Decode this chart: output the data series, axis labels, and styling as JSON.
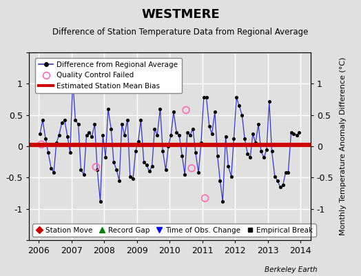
{
  "title": "WESTMERE",
  "subtitle": "Difference of Station Temperature Data from Regional Average",
  "ylabel": "Monthly Temperature Anomaly Difference (°C)",
  "xlim": [
    2005.7,
    2014.3
  ],
  "ylim": [
    -1.5,
    1.5
  ],
  "yticks": [
    -1.5,
    -1.0,
    -0.5,
    0.0,
    0.5,
    1.0,
    1.5
  ],
  "right_yticks": [
    -1.0,
    -0.5,
    0.0,
    0.5,
    1.0
  ],
  "right_yticklabels": [
    "-1",
    "-0.5",
    "0",
    "0.5",
    "1"
  ],
  "xticks": [
    2006,
    2007,
    2008,
    2009,
    2010,
    2011,
    2012,
    2013,
    2014
  ],
  "bias_start": 2005.7,
  "bias_end": 2014.3,
  "bias_value": 0.02,
  "background_color": "#e0e0e0",
  "grid_color": "#ffffff",
  "line_color": "#3333cc",
  "bias_color": "#cc0000",
  "watermark": "Berkeley Earth",
  "qc_failed": [
    [
      2006.08,
      0.03
    ],
    [
      2007.75,
      -0.33
    ],
    [
      2010.5,
      0.58
    ],
    [
      2010.67,
      -0.35
    ],
    [
      2011.08,
      -0.83
    ]
  ],
  "monthly_data": [
    [
      2006.04,
      0.2
    ],
    [
      2006.12,
      0.42
    ],
    [
      2006.21,
      0.12
    ],
    [
      2006.29,
      -0.1
    ],
    [
      2006.38,
      -0.35
    ],
    [
      2006.46,
      -0.42
    ],
    [
      2006.54,
      0.05
    ],
    [
      2006.62,
      0.18
    ],
    [
      2006.71,
      0.38
    ],
    [
      2006.79,
      0.42
    ],
    [
      2006.88,
      0.15
    ],
    [
      2006.96,
      -0.1
    ],
    [
      2007.04,
      1.05
    ],
    [
      2007.12,
      0.42
    ],
    [
      2007.21,
      0.35
    ],
    [
      2007.29,
      -0.38
    ],
    [
      2007.38,
      -0.45
    ],
    [
      2007.46,
      0.18
    ],
    [
      2007.54,
      0.22
    ],
    [
      2007.62,
      0.15
    ],
    [
      2007.71,
      0.35
    ],
    [
      2007.79,
      -0.38
    ],
    [
      2007.88,
      -0.88
    ],
    [
      2007.96,
      0.18
    ],
    [
      2008.04,
      -0.18
    ],
    [
      2008.12,
      0.6
    ],
    [
      2008.21,
      0.28
    ],
    [
      2008.29,
      -0.25
    ],
    [
      2008.38,
      -0.38
    ],
    [
      2008.46,
      -0.55
    ],
    [
      2008.54,
      0.35
    ],
    [
      2008.62,
      0.18
    ],
    [
      2008.71,
      0.42
    ],
    [
      2008.79,
      -0.48
    ],
    [
      2008.88,
      -0.52
    ],
    [
      2008.96,
      -0.08
    ],
    [
      2009.04,
      0.08
    ],
    [
      2009.12,
      0.42
    ],
    [
      2009.21,
      -0.25
    ],
    [
      2009.29,
      -0.3
    ],
    [
      2009.38,
      -0.4
    ],
    [
      2009.46,
      -0.32
    ],
    [
      2009.54,
      0.28
    ],
    [
      2009.62,
      0.18
    ],
    [
      2009.71,
      0.6
    ],
    [
      2009.79,
      -0.08
    ],
    [
      2009.88,
      -0.38
    ],
    [
      2009.96,
      0.0
    ],
    [
      2010.04,
      0.18
    ],
    [
      2010.12,
      0.55
    ],
    [
      2010.21,
      0.22
    ],
    [
      2010.29,
      0.18
    ],
    [
      2010.38,
      -0.15
    ],
    [
      2010.46,
      -0.45
    ],
    [
      2010.54,
      0.22
    ],
    [
      2010.62,
      0.18
    ],
    [
      2010.71,
      0.28
    ],
    [
      2010.79,
      -0.1
    ],
    [
      2010.88,
      -0.42
    ],
    [
      2010.96,
      0.05
    ],
    [
      2011.04,
      0.78
    ],
    [
      2011.12,
      0.78
    ],
    [
      2011.21,
      0.32
    ],
    [
      2011.29,
      0.2
    ],
    [
      2011.38,
      0.55
    ],
    [
      2011.46,
      -0.15
    ],
    [
      2011.54,
      -0.55
    ],
    [
      2011.62,
      -0.88
    ],
    [
      2011.71,
      0.15
    ],
    [
      2011.79,
      -0.32
    ],
    [
      2011.88,
      -0.48
    ],
    [
      2011.96,
      0.12
    ],
    [
      2012.04,
      0.78
    ],
    [
      2012.12,
      0.65
    ],
    [
      2012.21,
      0.5
    ],
    [
      2012.29,
      0.12
    ],
    [
      2012.38,
      -0.12
    ],
    [
      2012.46,
      -0.18
    ],
    [
      2012.54,
      0.2
    ],
    [
      2012.62,
      0.05
    ],
    [
      2012.71,
      0.35
    ],
    [
      2012.79,
      -0.08
    ],
    [
      2012.88,
      -0.18
    ],
    [
      2012.96,
      -0.05
    ],
    [
      2013.04,
      0.72
    ],
    [
      2013.12,
      -0.08
    ],
    [
      2013.21,
      -0.48
    ],
    [
      2013.29,
      -0.55
    ],
    [
      2013.38,
      -0.65
    ],
    [
      2013.46,
      -0.62
    ],
    [
      2013.54,
      -0.42
    ],
    [
      2013.62,
      -0.42
    ],
    [
      2013.71,
      0.22
    ],
    [
      2013.79,
      0.2
    ],
    [
      2013.88,
      0.18
    ],
    [
      2013.96,
      0.22
    ]
  ]
}
